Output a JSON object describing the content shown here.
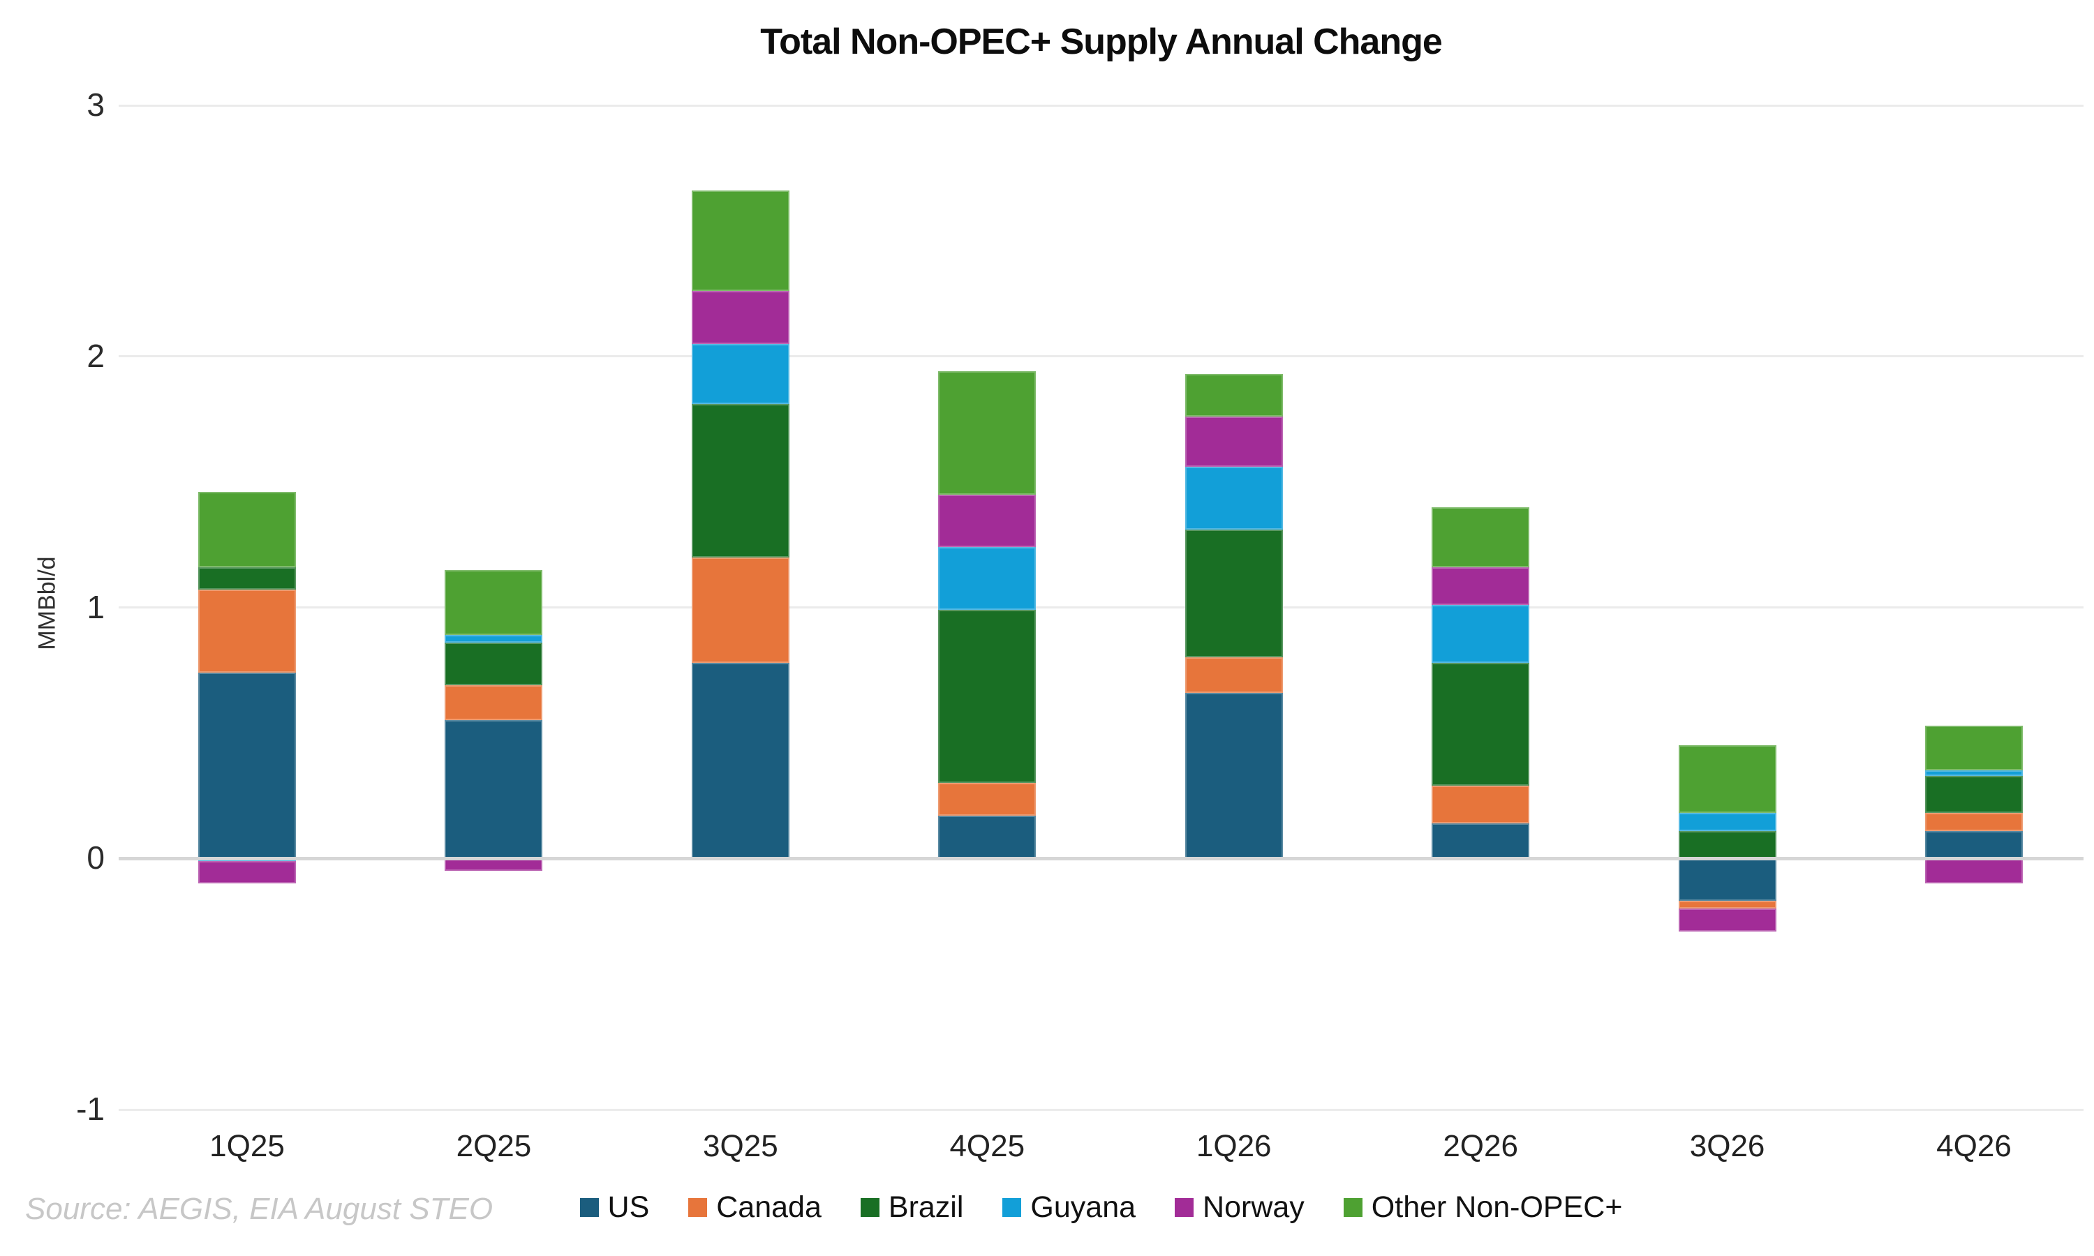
{
  "source_note": "Source: AEGIS, EIA August STEO",
  "chart_data": {
    "type": "bar",
    "stacked": true,
    "title": "Total Non-OPEC+ Supply Annual Change",
    "xlabel": "",
    "ylabel": "MMBbl/d",
    "ylim": [
      -1,
      3
    ],
    "yticks": [
      3,
      2,
      1,
      0,
      -1
    ],
    "grid": "horizontal",
    "legend_position": "bottom",
    "units": "MMBbl/d",
    "categories": [
      "1Q25",
      "2Q25",
      "3Q25",
      "4Q25",
      "1Q26",
      "2Q26",
      "3Q26",
      "4Q26"
    ],
    "series": [
      {
        "name": "US",
        "color": "#1b5d7e",
        "values": [
          0.74,
          0.55,
          0.78,
          0.17,
          0.66,
          0.14,
          -0.17,
          0.11
        ]
      },
      {
        "name": "Canada",
        "color": "#e7753b",
        "values": [
          0.33,
          0.14,
          0.42,
          0.13,
          0.14,
          0.15,
          -0.03,
          0.07
        ]
      },
      {
        "name": "Brazil",
        "color": "#196f24",
        "values": [
          0.09,
          0.17,
          0.61,
          0.69,
          0.51,
          0.49,
          0.11,
          0.15
        ]
      },
      {
        "name": "Guyana",
        "color": "#129fd8",
        "values": [
          -0.01,
          0.03,
          0.24,
          0.25,
          0.25,
          0.23,
          0.07,
          0.02
        ]
      },
      {
        "name": "Norway",
        "color": "#a22c97",
        "values": [
          -0.09,
          -0.05,
          0.21,
          0.21,
          0.2,
          0.15,
          -0.09,
          -0.1
        ]
      },
      {
        "name": "Other Non-OPEC+",
        "color": "#4ea132",
        "values": [
          0.3,
          0.26,
          0.4,
          0.49,
          0.17,
          0.24,
          0.27,
          0.18
        ]
      }
    ]
  }
}
